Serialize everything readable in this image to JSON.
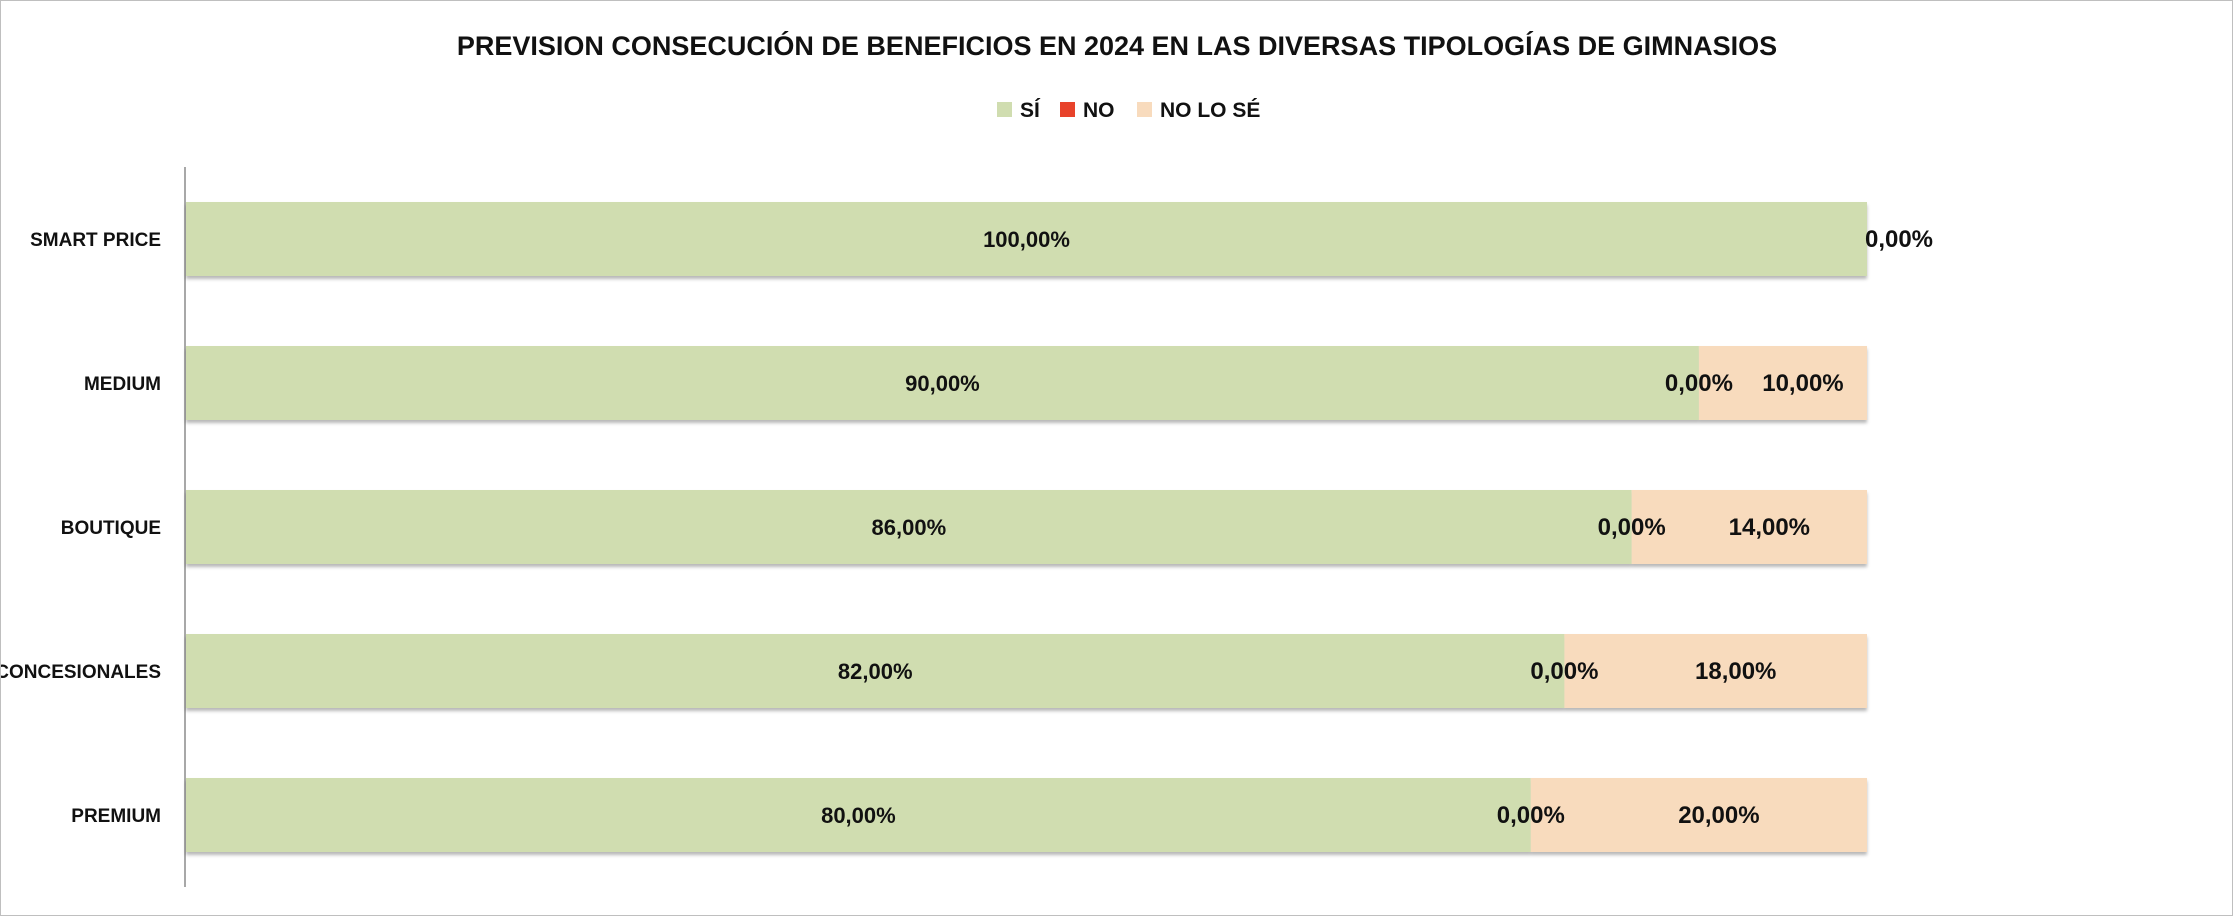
{
  "chart_data": {
    "type": "bar",
    "orientation": "horizontal",
    "stacked": true,
    "title": "PREVISION  CONSECUCIÓN DE BENEFICIOS EN 2024 EN LAS DIVERSAS TIPOLOGÍAS DE GIMNASIOS",
    "xlabel": "",
    "ylabel": "",
    "xlim": [
      0,
      100
    ],
    "grid": false,
    "legend_position": "top",
    "categories": [
      "SMART PRICE",
      "MEDIUM",
      "BOUTIQUE",
      "CONCESIONALES",
      "PREMIUM"
    ],
    "series": [
      {
        "name": "SÍ",
        "color": "#d0ddb0",
        "values": [
          100,
          90,
          86,
          82,
          80
        ],
        "labels": [
          "100,00%",
          "90,00%",
          "86,00%",
          "82,00%",
          "80,00%"
        ]
      },
      {
        "name": "NO",
        "color": "#e8432b",
        "values": [
          0,
          0,
          0,
          0,
          0
        ],
        "labels": [
          "0,00%",
          "0,00%",
          "0,00%",
          "0,00%",
          "0,00%"
        ]
      },
      {
        "name": "NO LO SÉ",
        "color": "#f8dbbd",
        "values": [
          0,
          10,
          14,
          18,
          20
        ],
        "labels": [
          "",
          "10,00%",
          "14,00%",
          "18,00%",
          "20,00%"
        ]
      }
    ]
  }
}
